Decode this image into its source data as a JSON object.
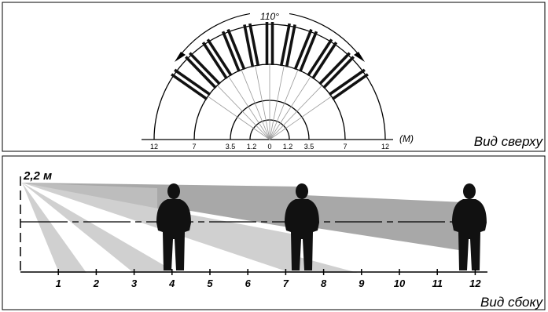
{
  "top_view": {
    "angle_label": "110°",
    "unit_label": "(M)",
    "caption": "Вид сверху",
    "scale_ticks": [
      "12",
      "7",
      "3.5",
      "1.2",
      "0",
      "1.2",
      "3.5",
      "7",
      "12"
    ]
  },
  "side_view": {
    "height_label": "2,2 м",
    "caption": "Вид сбоку",
    "distance_ticks": [
      "1",
      "2",
      "3",
      "4",
      "5",
      "6",
      "7",
      "8",
      "9",
      "10",
      "11",
      "12"
    ]
  },
  "colors": {
    "beam_dark": "#111111",
    "beam_light_gray": "#d0d0d0",
    "beam_mid_gray": "#a8a8a8",
    "figure": "#111111"
  }
}
